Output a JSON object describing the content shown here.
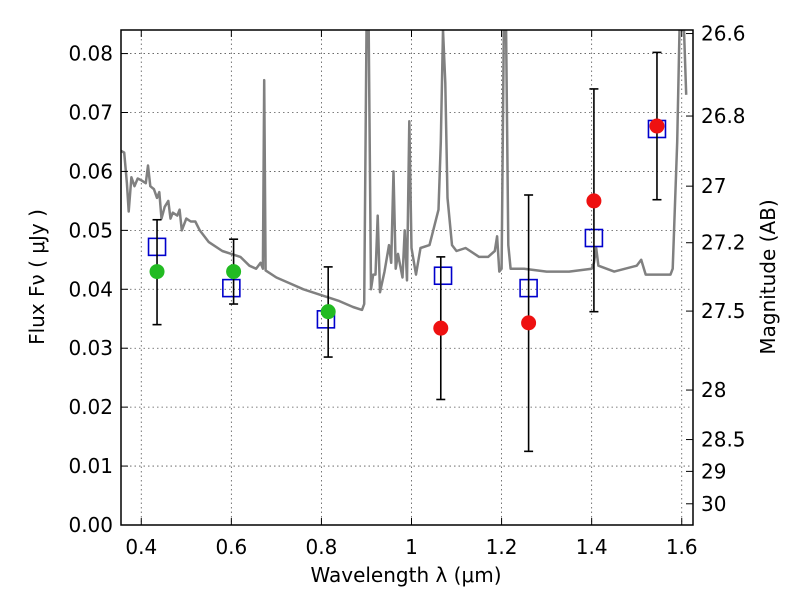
{
  "chart_data": {
    "type": "scatter",
    "title": "",
    "xlabel": "Wavelength  λ (μm)",
    "ylabel": "Flux  Fν  ( μJy )",
    "y2label": "Magnitude (AB)",
    "xlim": [
      0.355,
      1.625
    ],
    "ylim": [
      0.0,
      0.084
    ],
    "grid": true,
    "x_ticks": [
      0.4,
      0.6,
      0.8,
      1.0,
      1.2,
      1.4,
      1.6
    ],
    "x_tick_labels": [
      "0.4",
      "0.6",
      "0.8",
      "1",
      "1.2",
      "1.4",
      "1.6"
    ],
    "y_ticks": [
      0.0,
      0.01,
      0.02,
      0.03,
      0.04,
      0.05,
      0.06,
      0.07,
      0.08
    ],
    "y_tick_labels": [
      "0.00",
      "0.01",
      "0.02",
      "0.03",
      "0.04",
      "0.05",
      "0.06",
      "0.07",
      "0.08"
    ],
    "y2_ticks": [
      {
        "label": "26.6",
        "flux": 0.0834
      },
      {
        "label": "26.8",
        "flux": 0.0694
      },
      {
        "label": "27",
        "flux": 0.0575
      },
      {
        "label": "27.2",
        "flux": 0.0479
      },
      {
        "label": "27.5",
        "flux": 0.0363
      },
      {
        "label": "28",
        "flux": 0.0229
      },
      {
        "label": "28.5",
        "flux": 0.0145
      },
      {
        "label": "29",
        "flux": 0.0091
      },
      {
        "label": "30",
        "flux": 0.0036
      }
    ],
    "series": [
      {
        "color": "#808080",
        "kind": "line",
        "points": [
          [
            0.355,
            0.0635
          ],
          [
            0.362,
            0.0632
          ],
          [
            0.368,
            0.058
          ],
          [
            0.372,
            0.0532
          ],
          [
            0.378,
            0.059
          ],
          [
            0.385,
            0.0575
          ],
          [
            0.392,
            0.0588
          ],
          [
            0.4,
            0.0585
          ],
          [
            0.41,
            0.058
          ],
          [
            0.415,
            0.061
          ],
          [
            0.42,
            0.0575
          ],
          [
            0.428,
            0.057
          ],
          [
            0.435,
            0.0555
          ],
          [
            0.44,
            0.0565
          ],
          [
            0.445,
            0.052
          ],
          [
            0.452,
            0.054
          ],
          [
            0.46,
            0.055
          ],
          [
            0.465,
            0.052
          ],
          [
            0.47,
            0.053
          ],
          [
            0.48,
            0.0525
          ],
          [
            0.485,
            0.0535
          ],
          [
            0.49,
            0.05
          ],
          [
            0.5,
            0.052
          ],
          [
            0.51,
            0.0515
          ],
          [
            0.52,
            0.0515
          ],
          [
            0.53,
            0.05
          ],
          [
            0.55,
            0.048
          ],
          [
            0.58,
            0.0465
          ],
          [
            0.6,
            0.046
          ],
          [
            0.62,
            0.0455
          ],
          [
            0.64,
            0.044
          ],
          [
            0.655,
            0.0435
          ],
          [
            0.665,
            0.0445
          ],
          [
            0.67,
            0.0435
          ],
          [
            0.673,
            0.0755
          ],
          [
            0.676,
            0.0432
          ],
          [
            0.7,
            0.042
          ],
          [
            0.73,
            0.041
          ],
          [
            0.76,
            0.04
          ],
          [
            0.8,
            0.039
          ],
          [
            0.84,
            0.038
          ],
          [
            0.87,
            0.037
          ],
          [
            0.89,
            0.0365
          ],
          [
            0.895,
            0.0375
          ],
          [
            0.9,
            0.084
          ],
          [
            0.905,
            0.084
          ],
          [
            0.91,
            0.04
          ],
          [
            0.915,
            0.0425
          ],
          [
            0.92,
            0.0425
          ],
          [
            0.925,
            0.0525
          ],
          [
            0.93,
            0.0395
          ],
          [
            0.94,
            0.043
          ],
          [
            0.95,
            0.0475
          ],
          [
            0.955,
            0.0445
          ],
          [
            0.96,
            0.06
          ],
          [
            0.965,
            0.0435
          ],
          [
            0.97,
            0.046
          ],
          [
            0.98,
            0.042
          ],
          [
            0.985,
            0.05
          ],
          [
            0.99,
            0.0415
          ],
          [
            0.995,
            0.0685
          ],
          [
            1.0,
            0.047
          ],
          [
            1.01,
            0.0425
          ],
          [
            1.02,
            0.047
          ],
          [
            1.04,
            0.0475
          ],
          [
            1.06,
            0.0535
          ],
          [
            1.065,
            0.065
          ],
          [
            1.07,
            0.084
          ],
          [
            1.075,
            0.075
          ],
          [
            1.08,
            0.0555
          ],
          [
            1.09,
            0.0475
          ],
          [
            1.1,
            0.0465
          ],
          [
            1.12,
            0.047
          ],
          [
            1.15,
            0.0455
          ],
          [
            1.17,
            0.0455
          ],
          [
            1.185,
            0.0465
          ],
          [
            1.19,
            0.049
          ],
          [
            1.195,
            0.043
          ],
          [
            1.2,
            0.0435
          ],
          [
            1.205,
            0.084
          ],
          [
            1.21,
            0.084
          ],
          [
            1.215,
            0.0475
          ],
          [
            1.22,
            0.0435
          ],
          [
            1.25,
            0.0435
          ],
          [
            1.3,
            0.043
          ],
          [
            1.35,
            0.043
          ],
          [
            1.4,
            0.0435
          ],
          [
            1.405,
            0.0445
          ],
          [
            1.41,
            0.047
          ],
          [
            1.415,
            0.044
          ],
          [
            1.45,
            0.043
          ],
          [
            1.5,
            0.044
          ],
          [
            1.51,
            0.045
          ],
          [
            1.52,
            0.0425
          ],
          [
            1.55,
            0.0425
          ],
          [
            1.575,
            0.0425
          ],
          [
            1.58,
            0.0435
          ],
          [
            1.59,
            0.065
          ],
          [
            1.595,
            0.084
          ],
          [
            1.605,
            0.084
          ],
          [
            1.61,
            0.073
          ]
        ]
      },
      {
        "color": "#0000cc",
        "kind": "open-square",
        "points": [
          [
            0.435,
            0.0472
          ],
          [
            0.6,
            0.0402
          ],
          [
            0.81,
            0.0349
          ],
          [
            1.07,
            0.0423
          ],
          [
            1.26,
            0.0402
          ],
          [
            1.405,
            0.0487
          ],
          [
            1.545,
            0.0672
          ]
        ]
      },
      {
        "color": "#22bb22",
        "kind": "filled-circle",
        "points": [
          {
            "x": 0.435,
            "y": 0.043,
            "ylo": 0.034,
            "yhi": 0.0518
          },
          {
            "x": 0.605,
            "y": 0.043,
            "ylo": 0.0375,
            "yhi": 0.0485
          },
          {
            "x": 0.815,
            "y": 0.0362,
            "ylo": 0.0285,
            "yhi": 0.0438
          }
        ]
      },
      {
        "color": "#ee1111",
        "kind": "filled-circle",
        "points": [
          {
            "x": 1.065,
            "y": 0.0334,
            "ylo": 0.0213,
            "yhi": 0.0455
          },
          {
            "x": 1.26,
            "y": 0.0343,
            "ylo": 0.0125,
            "yhi": 0.056
          },
          {
            "x": 1.405,
            "y": 0.055,
            "ylo": 0.0362,
            "yhi": 0.074
          },
          {
            "x": 1.545,
            "y": 0.0677,
            "ylo": 0.0552,
            "yhi": 0.0802
          }
        ]
      }
    ]
  }
}
